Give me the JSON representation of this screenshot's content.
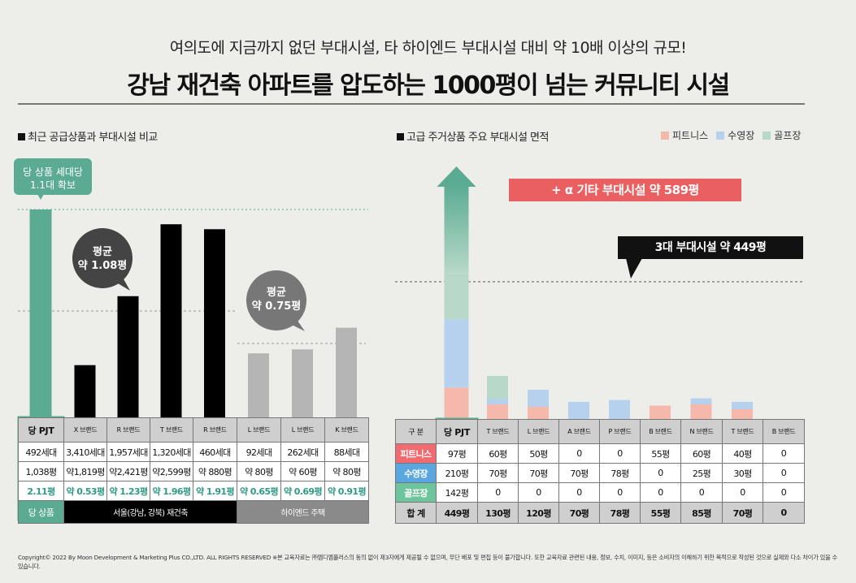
{
  "header": {
    "subtitle": "여의도에 지금까지 없던 부대시설, 타 하이엔드 부대시설 대비 약 10배 이상의 규모!",
    "title": "강남 재건축 아파트를 압도하는 1000평이 넘는 커뮤니티 시설"
  },
  "left": {
    "section_title": "최근 공급상품과 부대시설 비교",
    "badge_lines": [
      "당 상품 세대당",
      "1.1대 확보"
    ],
    "bubble_black": [
      "평균",
      "약 1.08평"
    ],
    "bubble_gray": [
      "평균",
      "약 0.75평"
    ],
    "columns": [
      "당 PJT",
      "X 브랜드",
      "R 브랜드",
      "T 브랜드",
      "R 브랜드",
      "L 브랜드",
      "L 브랜드",
      "K 브랜드"
    ],
    "row_households": [
      "492세대",
      "3,410세대",
      "1,957세대",
      "1,320세대",
      "460세대",
      "92세대",
      "262세대",
      "88세대"
    ],
    "row_area": [
      "1,038평",
      "약1,819평",
      "약2,421평",
      "약2,599평",
      "약 880평",
      "약 80평",
      "약 60평",
      "약 80평"
    ],
    "row_per_household": [
      "2.11평",
      "약 0.53평",
      "약 1.23평",
      "약 1.96평",
      "약 1.91평",
      "약 0.65평",
      "약 0.69평",
      "약 0.91평"
    ],
    "groups": {
      "own": "당 상품",
      "seoul": "서울(강남, 강북) 재건축",
      "highend": "하이엔드 주택"
    }
  },
  "right": {
    "section_title": "고급 주거상품 주요 부대시설 면적",
    "legend": [
      {
        "label": "피트니스",
        "color": "#f5b8ab"
      },
      {
        "label": "수영장",
        "color": "#b6d1ee"
      },
      {
        "label": "골프장",
        "color": "#b8d9c9"
      }
    ],
    "callout_plus": "+ α 기타  부대시설 약 589평",
    "callout_three": "3대 부대시설 약 449평",
    "table_header_label": "구  분",
    "columns": [
      "당 PJT",
      "T 브랜드",
      "L 브랜드",
      "A 브랜드",
      "P 브랜드",
      "B 브랜드",
      "N 브랜드",
      "T 브랜드",
      "B 브랜드"
    ],
    "rows": [
      {
        "label": "피트니스",
        "color": "#f06a6f",
        "values": [
          "97평",
          "60평",
          "50평",
          "0",
          "0",
          "55평",
          "60평",
          "40평",
          "0"
        ]
      },
      {
        "label": "수영장",
        "color": "#5aa6e0",
        "values": [
          "210평",
          "70평",
          "70평",
          "70평",
          "78평",
          "0",
          "25평",
          "30평",
          "0"
        ]
      },
      {
        "label": "골프장",
        "color": "#6dc49d",
        "values": [
          "142평",
          "0",
          "0",
          "0",
          "0",
          "0",
          "0",
          "0",
          "0"
        ]
      }
    ],
    "total_label": "합  계",
    "totals": [
      "449평",
      "130평",
      "120평",
      "70평",
      "78평",
      "55평",
      "85평",
      "70평",
      "0"
    ]
  },
  "chart_data": [
    {
      "type": "bar",
      "categories": [
        "당 PJT",
        "X 브랜드",
        "R 브랜드",
        "T 브랜드",
        "R 브랜드",
        "L 브랜드",
        "L 브랜드",
        "K 브랜드"
      ],
      "values": [
        2.11,
        0.53,
        1.23,
        1.96,
        1.91,
        0.65,
        0.69,
        0.91
      ],
      "title": "최근 공급상품과 부대시설 비교",
      "ylim": [
        0,
        2.2
      ],
      "avg_lines": [
        1.08,
        0.75
      ],
      "colors": [
        "#5bab93",
        "#000000",
        "#000000",
        "#000000",
        "#000000",
        "#b5b5b5",
        "#b5b5b5",
        "#b5b5b5"
      ]
    },
    {
      "type": "bar",
      "stacked": true,
      "categories": [
        "당 PJT",
        "T 브랜드",
        "L 브랜드",
        "A 브랜드",
        "P 브랜드",
        "B 브랜드",
        "N 브랜드",
        "T 브랜드",
        "B 브랜드"
      ],
      "series": [
        {
          "name": "피트니스",
          "values": [
            97,
            60,
            50,
            0,
            0,
            55,
            60,
            40,
            0
          ],
          "color": "#f5b8ab"
        },
        {
          "name": "수영장",
          "values": [
            210,
            70,
            70,
            70,
            78,
            0,
            25,
            30,
            0
          ],
          "color": "#b6d1ee"
        },
        {
          "name": "골프장",
          "values": [
            142,
            0,
            0,
            0,
            0,
            0,
            0,
            0,
            0
          ],
          "color": "#b8d9c9"
        }
      ],
      "title": "고급 주거상품 주요 부대시설 면적",
      "reference_lines": [
        449,
        589
      ]
    }
  ],
  "copyright": "Copyright© 2022 By Moon Development & Marketing Plus CO.,LTD. ALL RIGHTS RESERVED ※본 교육자료는 ㈜엠디엠플러스의 동의 없이 제3자에게 제공될 수 없으며, 무단 배포 및 편집 등이 불가합니다. 또한 교육자료 관련된 내용, 정보, 수치, 이미지, 등은 소비자의 이해하기 위한 목적으로 작성된 것으로 실제와 다소 차이가 있을 수 있습니다."
}
